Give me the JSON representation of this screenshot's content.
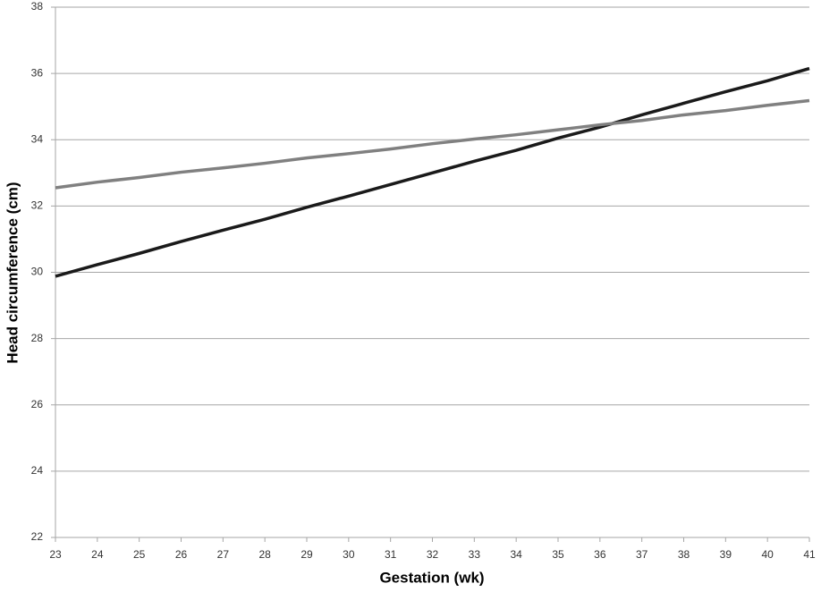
{
  "chart_data": {
    "type": "line",
    "xlabel": "Gestation (wk)",
    "ylabel": "Head circumference (cm)",
    "x": [
      23,
      24,
      25,
      26,
      27,
      28,
      29,
      30,
      31,
      32,
      33,
      34,
      35,
      36,
      37,
      38,
      39,
      40,
      41
    ],
    "series": [
      {
        "color": "#1a1a1a",
        "values": [
          29.88,
          30.23,
          30.57,
          30.93,
          31.27,
          31.6,
          31.96,
          32.3,
          32.65,
          33.0,
          33.35,
          33.68,
          34.05,
          34.38,
          34.75,
          35.1,
          35.45,
          35.78,
          36.15
        ]
      },
      {
        "color": "#808080",
        "values": [
          32.55,
          32.72,
          32.86,
          33.02,
          33.15,
          33.29,
          33.45,
          33.58,
          33.72,
          33.88,
          34.02,
          34.15,
          34.3,
          34.45,
          34.58,
          34.75,
          34.88,
          35.04,
          35.18
        ]
      }
    ],
    "xlim": [
      23,
      41
    ],
    "xticks": [
      23,
      24,
      25,
      26,
      27,
      28,
      29,
      30,
      31,
      32,
      33,
      34,
      35,
      36,
      37,
      38,
      39,
      40,
      41
    ],
    "ylim": [
      22,
      38
    ],
    "yticks": [
      22,
      24,
      26,
      28,
      30,
      32,
      34,
      36,
      38
    ],
    "grid": true
  }
}
